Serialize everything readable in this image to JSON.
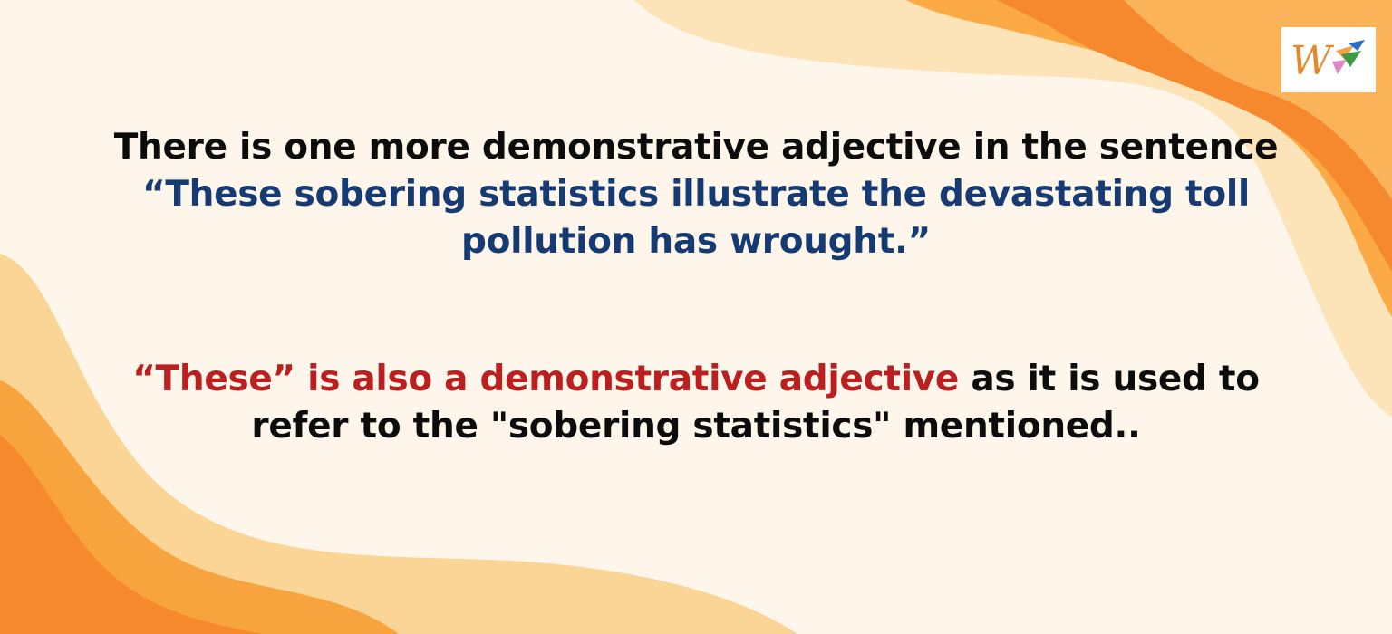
{
  "content": {
    "intro_line": "There is one more demonstrative adjective in the sentence",
    "quote_line_1": "“These sobering statistics illustrate the devastating toll",
    "quote_line_2": "pollution has wrought.”",
    "explanation_highlight": "“These” is also a demonstrative adjective",
    "explanation_rest_line_1": " as it is used to",
    "explanation_line_2": "refer to the \"sobering statistics\" mentioned.."
  },
  "logo": {
    "letter": "W"
  },
  "colors": {
    "background": "#fef6ea",
    "wave_light": "#fbcf8a",
    "wave_mid": "#fbaa45",
    "wave_dark": "#f6892d",
    "intro_text": "#0c0c0c",
    "quote_text": "#163a72",
    "highlight_text": "#bc1f1f"
  }
}
